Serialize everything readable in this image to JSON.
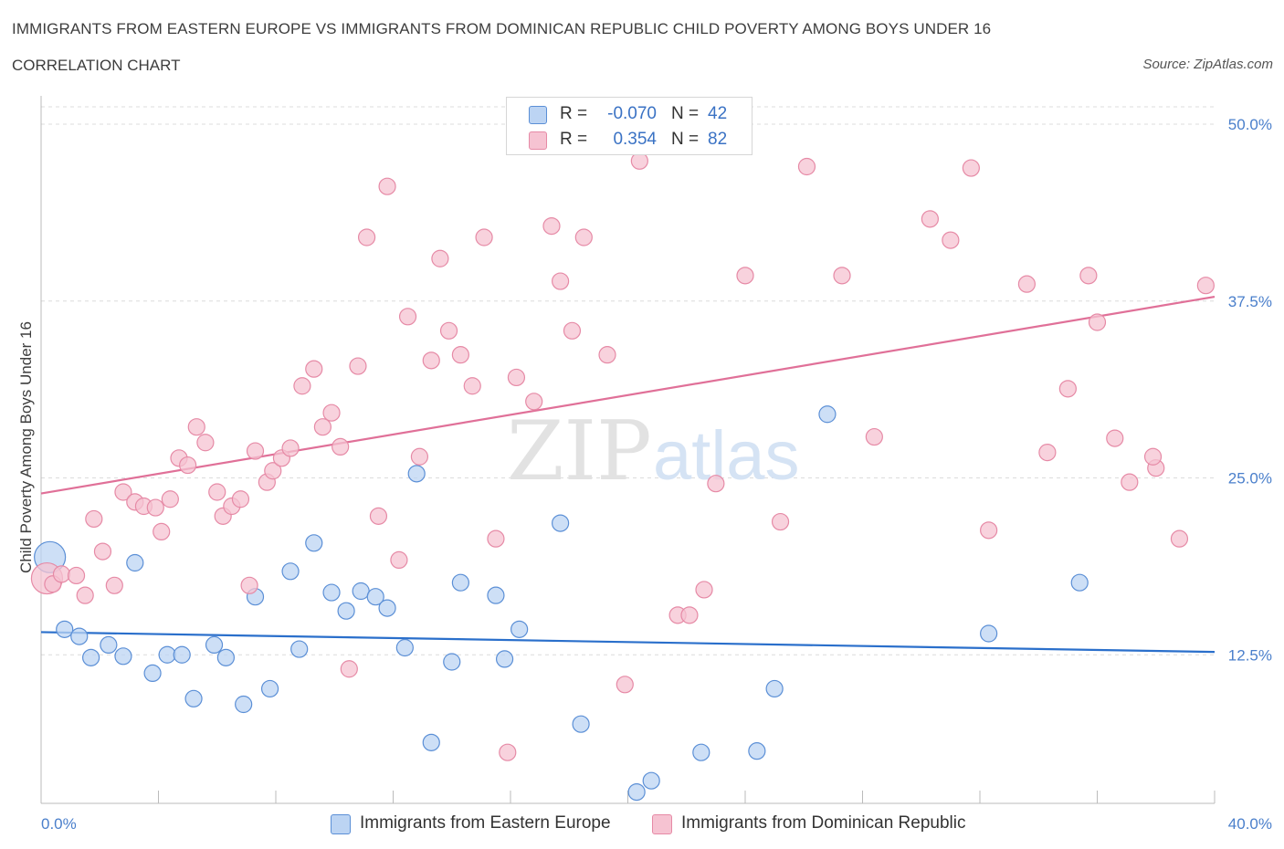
{
  "header": {
    "title": "IMMIGRANTS FROM EASTERN EUROPE VS IMMIGRANTS FROM DOMINICAN REPUBLIC CHILD POVERTY AMONG BOYS UNDER 16",
    "subtitle": "CORRELATION CHART",
    "source": "Source: ZipAtlas.com"
  },
  "watermark": {
    "zip": "ZIP",
    "atlas": "atlas"
  },
  "legend": {
    "r_label": "R =",
    "n_label": "N =",
    "series_a": {
      "r": "-0.070",
      "n": "42"
    },
    "series_b": {
      "r": "0.354",
      "n": "82"
    }
  },
  "chart_data": {
    "type": "scatter",
    "title": "IMMIGRANTS FROM EASTERN EUROPE VS IMMIGRANTS FROM DOMINICAN REPUBLIC CHILD POVERTY AMONG BOYS UNDER 16",
    "xlabel": "",
    "ylabel": "Child Poverty Among Boys Under 16",
    "xlim": [
      0,
      40
    ],
    "ylim": [
      2,
      52
    ],
    "x_tick_labels": [
      "0.0%",
      "40.0%"
    ],
    "y_ticks": [
      12.5,
      25.0,
      37.5,
      50.0
    ],
    "y_tick_labels": [
      "12.5%",
      "25.0%",
      "37.5%",
      "50.0%"
    ],
    "grid": true,
    "colors": {
      "series_a": "#5b8fd6",
      "series_a_fill": "#bcd4f3",
      "series_a_line": "#2a6fcb",
      "series_b": "#e68aa6",
      "series_b_fill": "#f6c3d2",
      "series_b_line": "#e07098",
      "tick": "#4a7fcb"
    },
    "series": [
      {
        "name": "Immigrants from Eastern Europe",
        "trend": {
          "x": [
            0,
            40
          ],
          "y": [
            14.1,
            12.7
          ]
        },
        "points": [
          {
            "x": 0.3,
            "y": 19.4,
            "big": true
          },
          {
            "x": 0.8,
            "y": 14.3
          },
          {
            "x": 1.3,
            "y": 13.8
          },
          {
            "x": 1.7,
            "y": 12.3
          },
          {
            "x": 2.3,
            "y": 13.2
          },
          {
            "x": 2.8,
            "y": 12.4
          },
          {
            "x": 3.2,
            "y": 19.0
          },
          {
            "x": 3.8,
            "y": 11.2
          },
          {
            "x": 4.3,
            "y": 12.5
          },
          {
            "x": 4.8,
            "y": 12.5
          },
          {
            "x": 5.2,
            "y": 9.4
          },
          {
            "x": 5.9,
            "y": 13.2
          },
          {
            "x": 6.3,
            "y": 12.3
          },
          {
            "x": 6.9,
            "y": 9.0
          },
          {
            "x": 7.3,
            "y": 16.6
          },
          {
            "x": 7.8,
            "y": 10.1
          },
          {
            "x": 8.5,
            "y": 18.4
          },
          {
            "x": 8.8,
            "y": 12.9
          },
          {
            "x": 9.3,
            "y": 20.4
          },
          {
            "x": 9.9,
            "y": 16.9
          },
          {
            "x": 10.4,
            "y": 15.6
          },
          {
            "x": 10.9,
            "y": 17.0
          },
          {
            "x": 11.4,
            "y": 16.6
          },
          {
            "x": 11.8,
            "y": 15.8
          },
          {
            "x": 12.4,
            "y": 13.0
          },
          {
            "x": 12.8,
            "y": 25.3
          },
          {
            "x": 13.3,
            "y": 6.3
          },
          {
            "x": 14.0,
            "y": 12.0
          },
          {
            "x": 14.3,
            "y": 17.6
          },
          {
            "x": 15.5,
            "y": 16.7
          },
          {
            "x": 15.8,
            "y": 12.2
          },
          {
            "x": 16.3,
            "y": 14.3
          },
          {
            "x": 17.7,
            "y": 21.8
          },
          {
            "x": 18.4,
            "y": 7.6
          },
          {
            "x": 20.3,
            "y": 2.8
          },
          {
            "x": 20.8,
            "y": 3.6
          },
          {
            "x": 22.5,
            "y": 5.6
          },
          {
            "x": 24.4,
            "y": 5.7
          },
          {
            "x": 25.0,
            "y": 10.1
          },
          {
            "x": 26.8,
            "y": 29.5
          },
          {
            "x": 32.3,
            "y": 14.0
          },
          {
            "x": 35.4,
            "y": 17.6
          }
        ]
      },
      {
        "name": "Immigrants from Dominican Republic",
        "trend": {
          "x": [
            0,
            40
          ],
          "y": [
            23.9,
            37.8
          ]
        },
        "points": [
          {
            "x": 0.2,
            "y": 17.9,
            "big": true
          },
          {
            "x": 0.4,
            "y": 17.5
          },
          {
            "x": 0.7,
            "y": 18.2
          },
          {
            "x": 1.2,
            "y": 18.1
          },
          {
            "x": 1.5,
            "y": 16.7
          },
          {
            "x": 1.8,
            "y": 22.1
          },
          {
            "x": 2.1,
            "y": 19.8
          },
          {
            "x": 2.5,
            "y": 17.4
          },
          {
            "x": 2.8,
            "y": 24.0
          },
          {
            "x": 3.2,
            "y": 23.3
          },
          {
            "x": 3.5,
            "y": 23.0
          },
          {
            "x": 3.9,
            "y": 22.9
          },
          {
            "x": 4.1,
            "y": 21.2
          },
          {
            "x": 4.4,
            "y": 23.5
          },
          {
            "x": 4.7,
            "y": 26.4
          },
          {
            "x": 5.0,
            "y": 25.9
          },
          {
            "x": 5.3,
            "y": 28.6
          },
          {
            "x": 5.6,
            "y": 27.5
          },
          {
            "x": 6.0,
            "y": 24.0
          },
          {
            "x": 6.2,
            "y": 22.3
          },
          {
            "x": 6.5,
            "y": 23.0
          },
          {
            "x": 6.8,
            "y": 23.5
          },
          {
            "x": 7.1,
            "y": 17.4
          },
          {
            "x": 7.3,
            "y": 26.9
          },
          {
            "x": 7.7,
            "y": 24.7
          },
          {
            "x": 7.9,
            "y": 25.5
          },
          {
            "x": 8.2,
            "y": 26.4
          },
          {
            "x": 8.5,
            "y": 27.1
          },
          {
            "x": 8.9,
            "y": 31.5
          },
          {
            "x": 9.3,
            "y": 32.7
          },
          {
            "x": 9.6,
            "y": 28.6
          },
          {
            "x": 9.9,
            "y": 29.6
          },
          {
            "x": 10.2,
            "y": 27.2
          },
          {
            "x": 10.5,
            "y": 11.5
          },
          {
            "x": 10.8,
            "y": 32.9
          },
          {
            "x": 11.1,
            "y": 42.0
          },
          {
            "x": 11.5,
            "y": 22.3
          },
          {
            "x": 11.8,
            "y": 45.6
          },
          {
            "x": 12.2,
            "y": 19.2
          },
          {
            "x": 12.5,
            "y": 36.4
          },
          {
            "x": 12.9,
            "y": 26.5
          },
          {
            "x": 13.3,
            "y": 33.3
          },
          {
            "x": 13.6,
            "y": 40.5
          },
          {
            "x": 13.9,
            "y": 35.4
          },
          {
            "x": 14.3,
            "y": 33.7
          },
          {
            "x": 14.7,
            "y": 31.5
          },
          {
            "x": 15.1,
            "y": 42.0
          },
          {
            "x": 15.5,
            "y": 20.7
          },
          {
            "x": 15.9,
            "y": 5.6
          },
          {
            "x": 16.2,
            "y": 32.1
          },
          {
            "x": 16.8,
            "y": 30.4
          },
          {
            "x": 17.4,
            "y": 42.8
          },
          {
            "x": 17.7,
            "y": 38.9
          },
          {
            "x": 18.1,
            "y": 35.4
          },
          {
            "x": 18.5,
            "y": 42.0
          },
          {
            "x": 19.3,
            "y": 33.7
          },
          {
            "x": 19.9,
            "y": 10.4
          },
          {
            "x": 20.4,
            "y": 47.4
          },
          {
            "x": 21.7,
            "y": 15.3
          },
          {
            "x": 22.1,
            "y": 15.3
          },
          {
            "x": 22.6,
            "y": 17.1
          },
          {
            "x": 23.0,
            "y": 24.6
          },
          {
            "x": 24.0,
            "y": 39.3
          },
          {
            "x": 25.2,
            "y": 21.9
          },
          {
            "x": 26.1,
            "y": 47.0
          },
          {
            "x": 27.3,
            "y": 39.3
          },
          {
            "x": 28.4,
            "y": 27.9
          },
          {
            "x": 30.3,
            "y": 43.3
          },
          {
            "x": 31.0,
            "y": 41.8
          },
          {
            "x": 31.7,
            "y": 46.9
          },
          {
            "x": 32.3,
            "y": 21.3
          },
          {
            "x": 33.6,
            "y": 38.7
          },
          {
            "x": 35.0,
            "y": 31.3
          },
          {
            "x": 35.7,
            "y": 39.3
          },
          {
            "x": 36.6,
            "y": 27.8
          },
          {
            "x": 37.1,
            "y": 24.7
          },
          {
            "x": 38.0,
            "y": 25.7
          },
          {
            "x": 38.8,
            "y": 20.7
          },
          {
            "x": 39.7,
            "y": 38.6
          },
          {
            "x": 34.3,
            "y": 26.8
          },
          {
            "x": 36.0,
            "y": 36.0
          },
          {
            "x": 37.9,
            "y": 26.5
          }
        ]
      }
    ]
  }
}
